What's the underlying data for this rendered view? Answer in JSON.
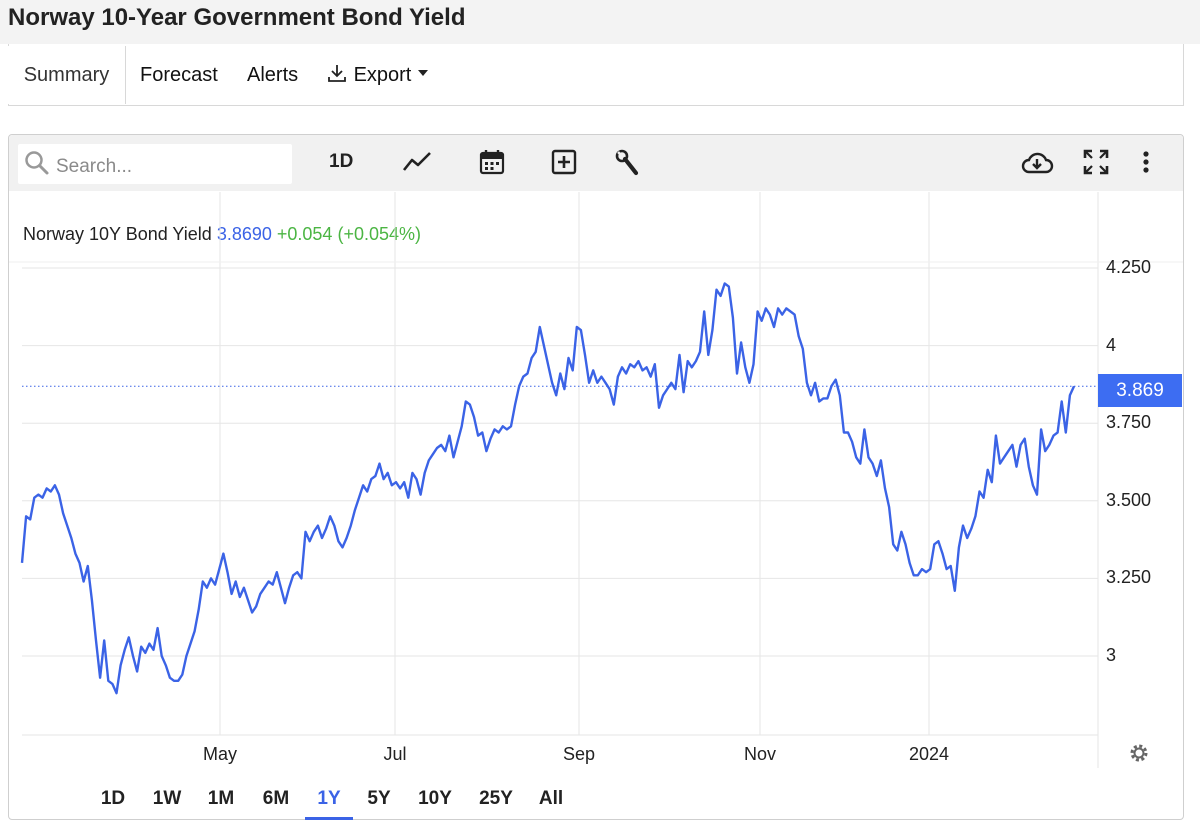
{
  "page": {
    "title": "Norway 10-Year Government Bond Yield"
  },
  "tabs": [
    {
      "label": "Summary",
      "active": true
    },
    {
      "label": "Forecast"
    },
    {
      "label": "Alerts"
    },
    {
      "label": "Export"
    }
  ],
  "toolbar": {
    "search_placeholder": "Search...",
    "interval_label": "1D",
    "icons": [
      "search-icon",
      "line-chart-icon",
      "calendar-icon",
      "add-indicator-icon",
      "wrench-icon",
      "cloud-download-icon",
      "fullscreen-icon",
      "more-vertical-icon"
    ]
  },
  "legend": {
    "name": "Norway 10Y Bond Yield",
    "value": "3.8690",
    "change": "+0.054 (+0.054%)"
  },
  "price_tag": "3.869",
  "ranges": [
    {
      "label": "1D"
    },
    {
      "label": "1W"
    },
    {
      "label": "1M"
    },
    {
      "label": "6M"
    },
    {
      "label": "1Y",
      "active": true
    },
    {
      "label": "5Y"
    },
    {
      "label": "10Y"
    },
    {
      "label": "25Y"
    },
    {
      "label": "All"
    }
  ],
  "colors": {
    "series": "#3b63e6",
    "up": "#4bb543",
    "tag": "#3d6df2",
    "grid": "#e6e6e6"
  },
  "chart_data": {
    "type": "line",
    "title": "Norway 10Y Bond Yield",
    "series": [
      {
        "name": "Norway 10Y Bond Yield",
        "values": [
          3.3,
          3.45,
          3.44,
          3.51,
          3.52,
          3.51,
          3.54,
          3.53,
          3.55,
          3.52,
          3.46,
          3.42,
          3.38,
          3.33,
          3.3,
          3.24,
          3.29,
          3.18,
          3.05,
          2.93,
          3.05,
          2.92,
          2.91,
          2.88,
          2.97,
          3.02,
          3.06,
          3.0,
          2.95,
          3.03,
          3.01,
          3.04,
          3.02,
          3.09,
          3.0,
          2.97,
          2.93,
          2.92,
          2.92,
          2.94,
          3.0,
          3.04,
          3.08,
          3.15,
          3.24,
          3.22,
          3.25,
          3.23,
          3.28,
          3.33,
          3.27,
          3.2,
          3.24,
          3.19,
          3.22,
          3.18,
          3.14,
          3.16,
          3.2,
          3.22,
          3.24,
          3.23,
          3.27,
          3.22,
          3.17,
          3.22,
          3.26,
          3.27,
          3.25,
          3.4,
          3.37,
          3.4,
          3.42,
          3.38,
          3.41,
          3.45,
          3.42,
          3.37,
          3.35,
          3.38,
          3.42,
          3.47,
          3.51,
          3.55,
          3.53,
          3.57,
          3.58,
          3.62,
          3.57,
          3.59,
          3.55,
          3.56,
          3.54,
          3.56,
          3.51,
          3.59,
          3.57,
          3.52,
          3.59,
          3.63,
          3.65,
          3.67,
          3.68,
          3.66,
          3.71,
          3.64,
          3.69,
          3.74,
          3.82,
          3.81,
          3.77,
          3.71,
          3.72,
          3.66,
          3.7,
          3.73,
          3.72,
          3.74,
          3.73,
          3.74,
          3.81,
          3.87,
          3.9,
          3.91,
          3.96,
          3.98,
          4.06,
          4.0,
          3.94,
          3.88,
          3.84,
          3.91,
          3.86,
          3.96,
          3.92,
          4.06,
          4.05,
          3.97,
          3.88,
          3.92,
          3.88,
          3.9,
          3.88,
          3.86,
          3.81,
          3.9,
          3.93,
          3.91,
          3.94,
          3.93,
          3.95,
          3.92,
          3.93,
          3.9,
          3.94,
          3.8,
          3.84,
          3.86,
          3.88,
          3.86,
          3.97,
          3.85,
          3.95,
          3.93,
          3.95,
          3.98,
          4.11,
          3.97,
          4.05,
          4.18,
          4.16,
          4.2,
          4.19,
          4.09,
          3.91,
          4.01,
          3.93,
          3.88,
          3.94,
          4.11,
          4.08,
          4.12,
          4.1,
          4.06,
          4.12,
          4.1,
          4.12,
          4.11,
          4.1,
          4.03,
          3.99,
          3.88,
          3.84,
          3.88,
          3.82,
          3.83,
          3.83,
          3.87,
          3.89,
          3.84,
          3.72,
          3.72,
          3.69,
          3.64,
          3.62,
          3.73,
          3.64,
          3.62,
          3.58,
          3.63,
          3.54,
          3.48,
          3.36,
          3.34,
          3.4,
          3.36,
          3.3,
          3.26,
          3.26,
          3.28,
          3.27,
          3.28,
          3.36,
          3.37,
          3.33,
          3.28,
          3.29,
          3.21,
          3.35,
          3.42,
          3.38,
          3.41,
          3.45,
          3.53,
          3.51,
          3.6,
          3.56,
          3.71,
          3.62,
          3.64,
          3.66,
          3.68,
          3.61,
          3.68,
          3.7,
          3.61,
          3.55,
          3.52,
          3.73,
          3.66,
          3.68,
          3.71,
          3.72,
          3.82,
          3.72,
          3.84,
          3.869
        ]
      }
    ],
    "x_ticks": [
      "May",
      "Jul",
      "Sep",
      "Nov",
      "2024"
    ],
    "y_ticks": [
      "4.250",
      "4",
      "3.750",
      "3.500",
      "3.250",
      "3"
    ],
    "ylim": [
      2.77,
      4.43
    ],
    "last_value": 3.869,
    "grid": true
  }
}
